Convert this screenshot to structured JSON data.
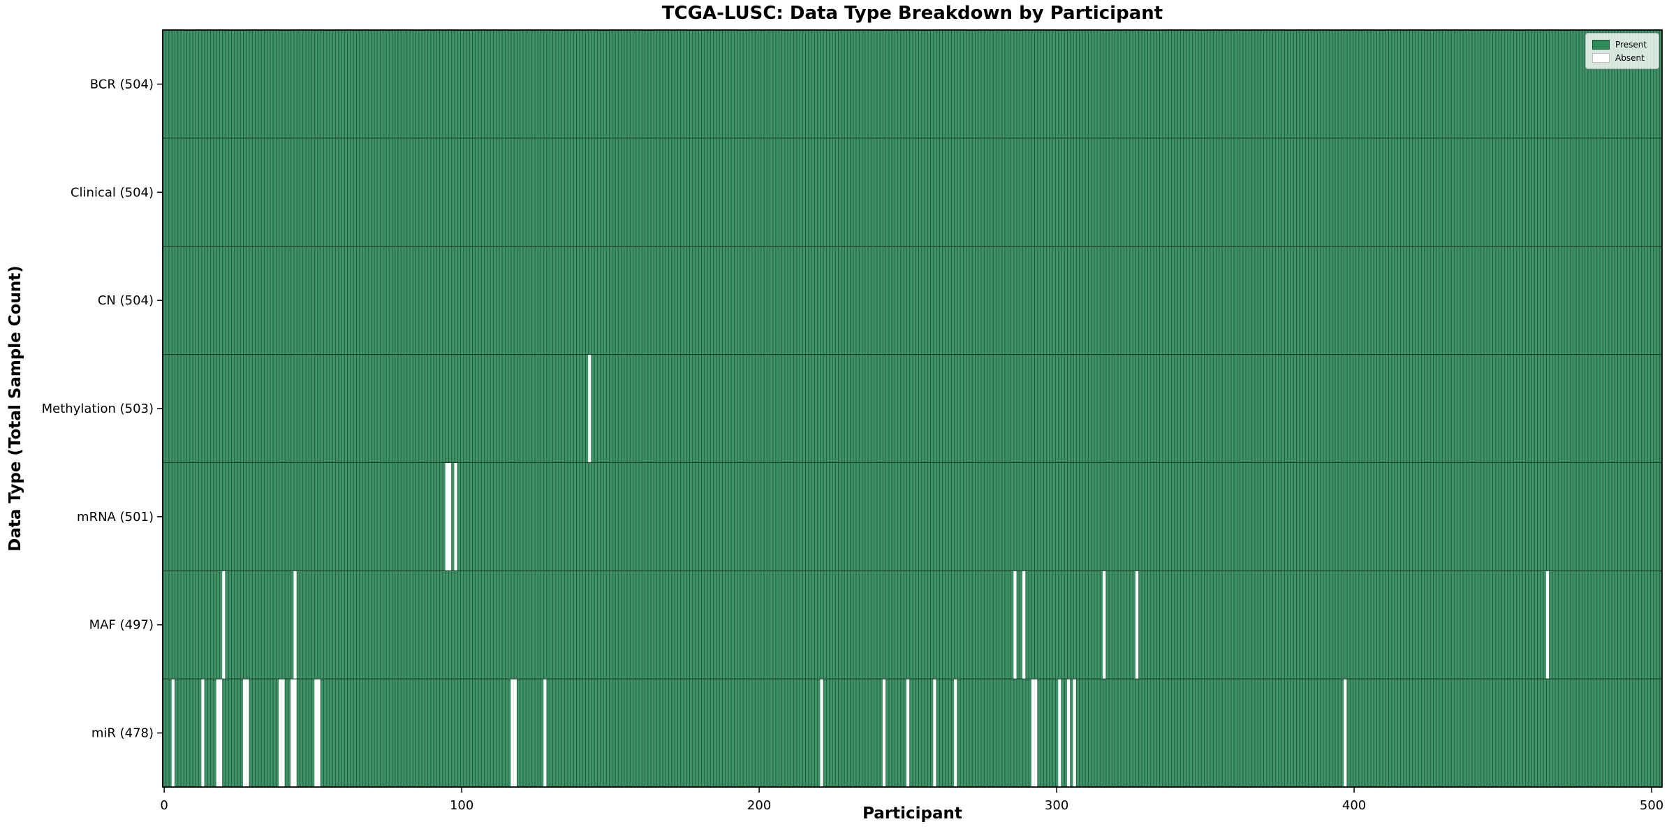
{
  "chart_data": {
    "type": "heatmap",
    "title": "TCGA-LUSC: Data Type Breakdown by Participant",
    "xlabel": "Participant",
    "ylabel": "Data Type (Total Sample Count)",
    "x_ticks": [
      0,
      100,
      200,
      300,
      400,
      500
    ],
    "xlim": [
      0,
      504
    ],
    "n_participants": 504,
    "grid": false,
    "legend_position": "upper right",
    "legend_entries": [
      {
        "label": "Present",
        "color": "#2e8b57"
      },
      {
        "label": "Absent",
        "color": "#ffffff"
      }
    ],
    "colors": {
      "present_fill": "#3f9367",
      "bar_edge_stripe": "#235c40",
      "absent": "#ffffff",
      "frame": "#000000",
      "row_separator": "#1a3d2b"
    },
    "rows": [
      {
        "name": "BCR",
        "count": 504,
        "absent": []
      },
      {
        "name": "Clinical",
        "count": 504,
        "absent": []
      },
      {
        "name": "CN",
        "count": 504,
        "absent": []
      },
      {
        "name": "Methylation",
        "count": 503,
        "absent": [
          143
        ]
      },
      {
        "name": "mRNA",
        "count": 501,
        "absent": [
          95,
          96,
          98
        ]
      },
      {
        "name": "MAF",
        "count": 497,
        "absent": [
          20,
          44,
          286,
          289,
          316,
          327,
          465
        ]
      },
      {
        "name": "miR",
        "count": 478,
        "absent": [
          3,
          13,
          18,
          19,
          27,
          28,
          39,
          40,
          43,
          44,
          51,
          52,
          117,
          118,
          128,
          221,
          242,
          250,
          259,
          266,
          292,
          293,
          301,
          304,
          306,
          397
        ]
      }
    ]
  }
}
